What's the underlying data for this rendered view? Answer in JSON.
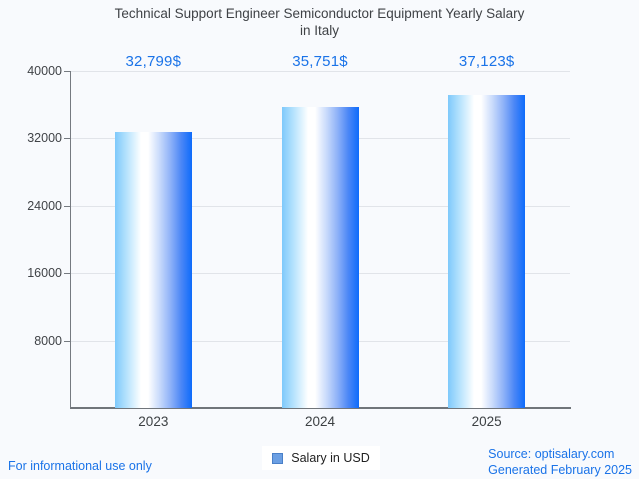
{
  "page": {
    "background": "#f8fafd"
  },
  "chart_data": {
    "type": "bar",
    "title": "Technical Support Engineer Semiconductor Equipment Yearly Salary in Italy",
    "title_lines": [
      "Technical Support Engineer Semiconductor Equipment Yearly Salary",
      "in Italy"
    ],
    "categories": [
      "2023",
      "2024",
      "2025"
    ],
    "series": [
      {
        "name": "Salary in USD",
        "values": [
          32799,
          35751,
          37123
        ]
      }
    ],
    "value_labels": [
      "32,799$",
      "35,751$",
      "37,123$"
    ],
    "xlabel": "",
    "ylabel": "",
    "ylim": [
      0,
      40000
    ],
    "yticks": [
      40000,
      32000,
      24000,
      16000,
      8000
    ],
    "grid": true,
    "legend_position": "bottom",
    "bar_gradient": [
      "#7ec9fb",
      "#ffffff",
      "#0d6bfb"
    ]
  },
  "legend": {
    "label": "Salary in USD"
  },
  "footer": {
    "disclaimer": "For informational use only",
    "source": "Source: optisalary.com",
    "generated": "Generated February 2025"
  },
  "colors": {
    "accent_blue": "#1a73e8",
    "title_text": "#3f4246",
    "axis_text": "#404347",
    "gridline": "#e1e4e9",
    "axis_line": "#70757a",
    "legend_marker_fill": "#6b9fe3",
    "legend_marker_border": "#4a80c8"
  }
}
